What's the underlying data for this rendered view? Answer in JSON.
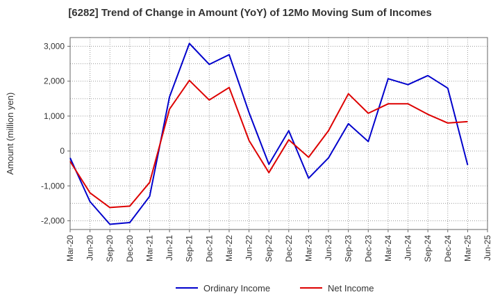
{
  "chart_data": {
    "type": "line",
    "title": "[6282]  Trend of Change in Amount (YoY) of 12Mo Moving Sum of Incomes",
    "ylabel": "Amount (million yen)",
    "xlabel": "",
    "ylim": [
      -2250,
      3250
    ],
    "yticks": [
      3000,
      2000,
      1000,
      0,
      -1000,
      -2000
    ],
    "ytick_labels": [
      "3,000",
      "2,000",
      "1,000",
      "0",
      "-1,000",
      "-2,000"
    ],
    "categories": [
      "Mar-20",
      "Jun-20",
      "Sep-20",
      "Dec-20",
      "Mar-21",
      "Jun-21",
      "Sep-21",
      "Dec-21",
      "Mar-22",
      "Jun-22",
      "Sep-22",
      "Dec-22",
      "Mar-23",
      "Jun-23",
      "Sep-23",
      "Dec-23",
      "Mar-24",
      "Jun-24",
      "Sep-24",
      "Dec-24",
      "Mar-25",
      "Jun-25"
    ],
    "grid": true,
    "legend_position": "bottom",
    "series": [
      {
        "name": "Ordinary Income",
        "color": "#0000cc",
        "values": [
          -200,
          -1450,
          -2100,
          -2050,
          -1300,
          1550,
          3080,
          2480,
          2760,
          1100,
          -380,
          580,
          -780,
          -200,
          780,
          270,
          2070,
          1900,
          2160,
          1800,
          -400,
          null
        ]
      },
      {
        "name": "Net Income",
        "color": "#dd0000",
        "values": [
          -300,
          -1200,
          -1620,
          -1580,
          -900,
          1200,
          2020,
          1460,
          1820,
          300,
          -620,
          320,
          -180,
          580,
          1640,
          1080,
          1350,
          1350,
          1050,
          800,
          840,
          null
        ]
      }
    ]
  }
}
